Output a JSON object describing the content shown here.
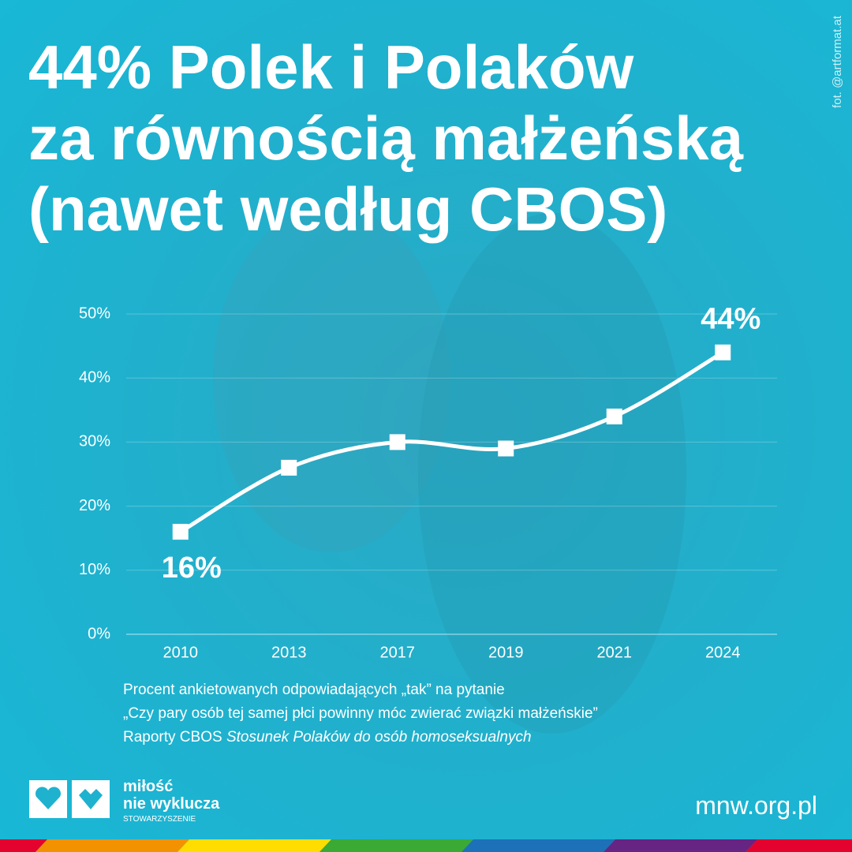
{
  "chart_data": {
    "type": "line",
    "title": [
      "44% Polek i Polaków",
      "za równością małżeńską",
      "(nawet według CBOS)"
    ],
    "categories": [
      "2010",
      "2013",
      "2017",
      "2019",
      "2021",
      "2024"
    ],
    "values": [
      16,
      26,
      30,
      29,
      34,
      44
    ],
    "value_labels": [
      "16%",
      null,
      null,
      null,
      null,
      "44%"
    ],
    "color": "#ffffff",
    "ylim": [
      0,
      50
    ],
    "yticks": [
      {
        "value": 0,
        "label": "0%"
      },
      {
        "value": 10,
        "label": "10%"
      },
      {
        "value": 20,
        "label": "20%"
      },
      {
        "value": 30,
        "label": "30%"
      },
      {
        "value": 40,
        "label": "40%"
      },
      {
        "value": 50,
        "label": "50%"
      }
    ],
    "grid": true,
    "notes": [
      "Procent ankietowanych odpowiadających „tak” na pytanie",
      "„Czy pary osób tej samej płci powinny móc zwierać związki małżeńskie”"
    ],
    "source": {
      "prefix": "Raporty CBOS",
      "title": "Stosunek Polaków do osób homoseksualnych"
    }
  },
  "photo_credit": "fot. @artformat.at",
  "logo": {
    "line1": "miłość",
    "line2": "nie wyklucza",
    "line3": "STOWARZYSZENIE"
  },
  "url": "mnw.org.pl"
}
